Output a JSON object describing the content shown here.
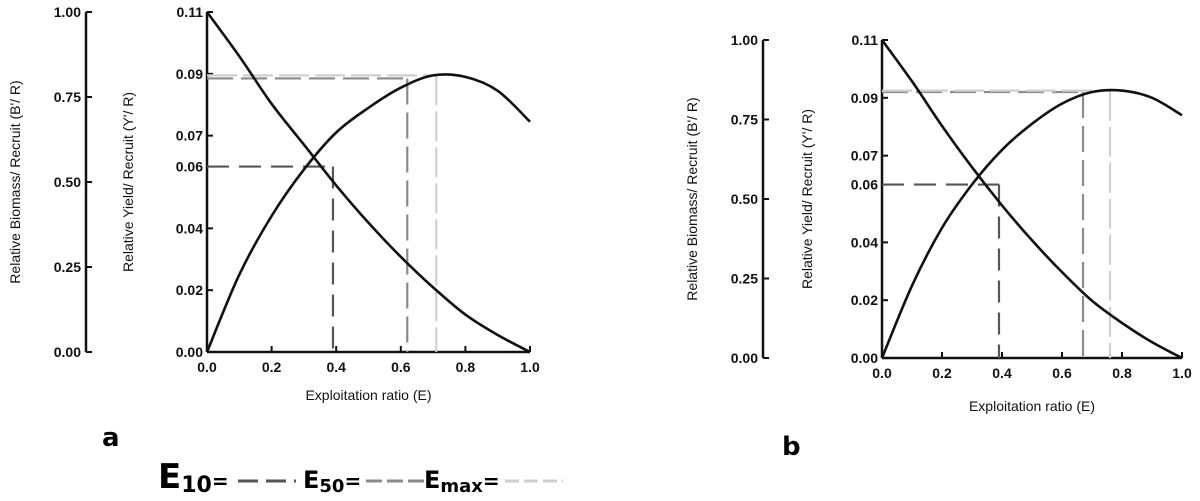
{
  "chart_data": [
    {
      "type": "line",
      "panel_label": "a",
      "xlabel": "Exploitation ratio (E)",
      "ylabel_left": "Relative Biomass/ Recruit (B'/ R)",
      "ylabel_right": "Relative Yield/ Recruit (Y'/ R)",
      "xlim": [
        0,
        1.0
      ],
      "ylim_left": [
        0,
        1.0
      ],
      "ylim_right": [
        0,
        0.11
      ],
      "x_ticks": [
        "0.0",
        "0.2",
        "0.4",
        "0.6",
        "0.8",
        "1.0"
      ],
      "y_ticks_left": [
        "0.00",
        "0.25",
        "0.50",
        "0.75",
        "1.00"
      ],
      "y_ticks_right": [
        "0.00",
        "0.02",
        "0.04",
        "0.06",
        "0.07",
        "0.09",
        "0.11"
      ],
      "series": [
        {
          "axis": "right",
          "x": [
            0.0,
            0.1,
            0.2,
            0.3,
            0.4,
            0.5,
            0.6,
            0.7,
            0.8,
            0.9,
            1.0
          ],
          "y": [
            0.0,
            0.025,
            0.044,
            0.059,
            0.071,
            0.079,
            0.0855,
            0.0895,
            0.089,
            0.0845,
            0.0745
          ]
        },
        {
          "axis": "left",
          "x": [
            0.0,
            0.1,
            0.2,
            0.3,
            0.4,
            0.5,
            0.6,
            0.7,
            0.8,
            0.9,
            1.0
          ],
          "y": [
            1.0,
            0.87,
            0.73,
            0.61,
            0.49,
            0.38,
            0.28,
            0.19,
            0.11,
            0.05,
            0.0
          ]
        }
      ],
      "reference_lines": [
        {
          "name": "E10",
          "x": 0.39,
          "y": 0.06,
          "style": "dash-dark"
        },
        {
          "name": "E50",
          "x": 0.62,
          "y": 0.0885,
          "style": "dash-mid"
        },
        {
          "name": "Emax",
          "x": 0.71,
          "y": 0.0895,
          "style": "dash-light"
        }
      ]
    },
    {
      "type": "line",
      "panel_label": "b",
      "xlabel": "Exploitation ratio (E)",
      "ylabel_left": "Relative Biomass/ Recruit (B'/ R)",
      "ylabel_right": "Relative Yield/ Recruit (Y'/ R)",
      "xlim": [
        0,
        1.0
      ],
      "ylim_left": [
        0,
        1.0
      ],
      "ylim_right": [
        0,
        0.11
      ],
      "x_ticks": [
        "0.0",
        "0.2",
        "0.4",
        "0.6",
        "0.8",
        "1.0"
      ],
      "y_ticks_left": [
        "0.00",
        "0.25",
        "0.50",
        "0.75",
        "1.00"
      ],
      "y_ticks_right": [
        "0.00",
        "0.02",
        "0.04",
        "0.06",
        "0.07",
        "0.09",
        "0.11"
      ],
      "series": [
        {
          "axis": "right",
          "x": [
            0.0,
            0.1,
            0.2,
            0.3,
            0.4,
            0.5,
            0.6,
            0.7,
            0.8,
            0.9,
            1.0
          ],
          "y": [
            0.0,
            0.025,
            0.045,
            0.06,
            0.072,
            0.081,
            0.088,
            0.092,
            0.0925,
            0.09,
            0.084
          ]
        },
        {
          "axis": "left",
          "x": [
            0.0,
            0.1,
            0.2,
            0.3,
            0.4,
            0.5,
            0.6,
            0.7,
            0.8,
            0.9,
            1.0
          ],
          "y": [
            1.0,
            0.87,
            0.73,
            0.6,
            0.48,
            0.37,
            0.27,
            0.18,
            0.11,
            0.05,
            0.0
          ]
        }
      ],
      "reference_lines": [
        {
          "name": "E10",
          "x": 0.39,
          "y": 0.06,
          "style": "dash-dark"
        },
        {
          "name": "E50",
          "x": 0.67,
          "y": 0.092,
          "style": "dash-mid"
        },
        {
          "name": "Emax",
          "x": 0.76,
          "y": 0.0925,
          "style": "dash-light"
        }
      ]
    }
  ],
  "legend": {
    "items": [
      {
        "base": "E",
        "sub": "10",
        "suffix": "=",
        "style": "dash-dark"
      },
      {
        "base": "E",
        "sub": "50",
        "suffix": "=",
        "style": "dash-mid"
      },
      {
        "base": "E",
        "sub": "max",
        "suffix": "=",
        "style": "dash-light"
      }
    ]
  },
  "colors": {
    "curve": "#111111",
    "dash-dark": "#555555",
    "dash-mid": "#8a8a8a",
    "dash-light": "#cfcfcf"
  }
}
